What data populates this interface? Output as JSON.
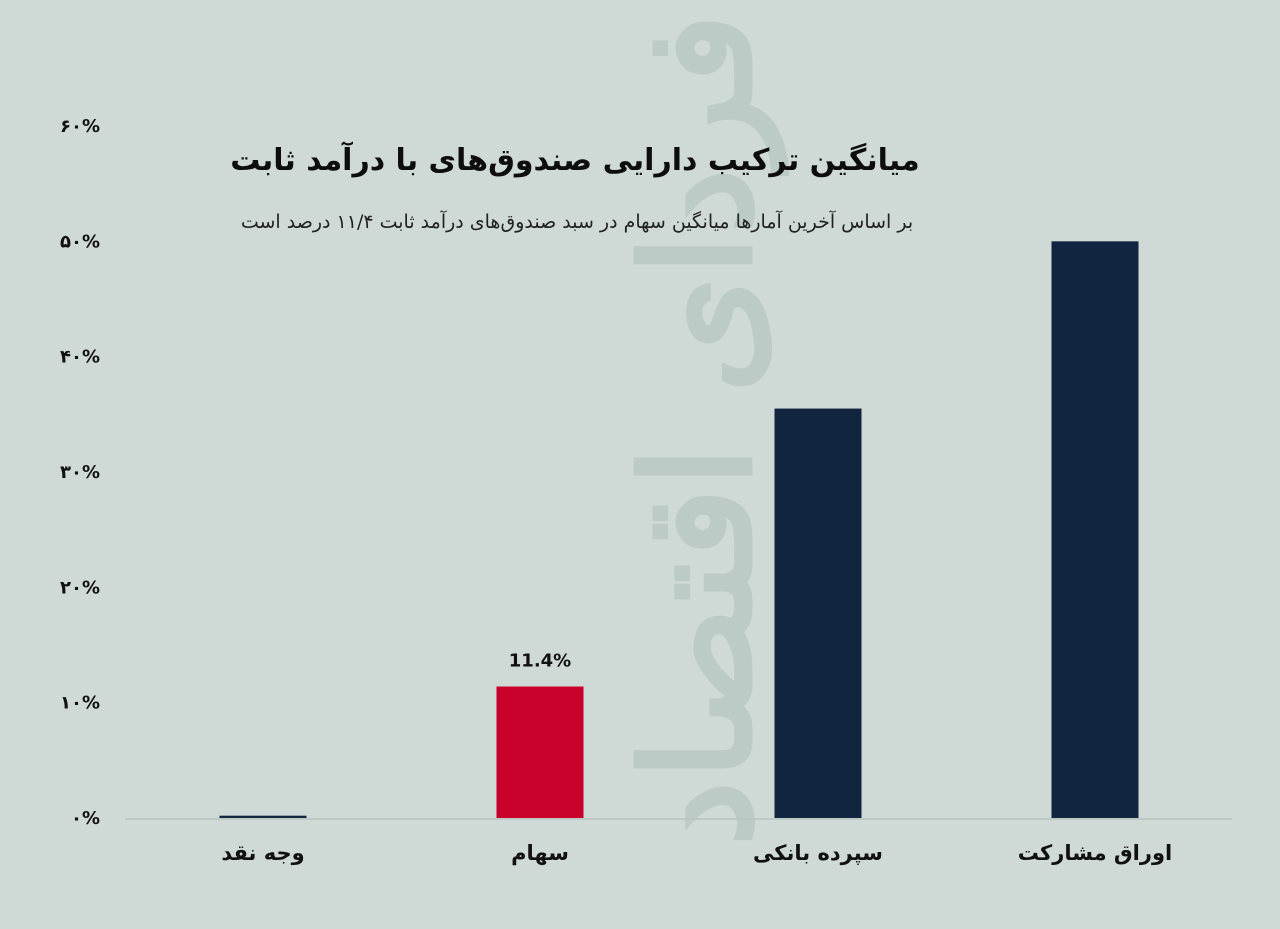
{
  "watermark_text": "فردای اقتصاد",
  "colors": {
    "background": "#cfd9d6",
    "bar_default": "#112440",
    "bar_highlight": "#c8002a",
    "baseline": "#b9c4c1"
  },
  "chart_data": {
    "type": "bar",
    "title": "میانگین ترکیب دارایی صندوق‌های با درآمد ثابت",
    "subtitle": "بر اساس آخرین آمارها میانگین سهام در سبد صندوق‌های درآمد ثابت ۱۱/۴ درصد است",
    "categories": [
      "وجه نقد",
      "سهام",
      "سپرده بانکی",
      "اوراق مشارکت"
    ],
    "values": [
      0.2,
      11.4,
      35.5,
      50
    ],
    "highlight_index": 1,
    "data_labels": [
      "",
      "11.4%",
      "",
      ""
    ],
    "ylim": [
      0,
      60
    ],
    "yticks": [
      0,
      10,
      20,
      30,
      40,
      50,
      60
    ],
    "ytick_labels": [
      "۰%",
      "۱۰%",
      "۲۰%",
      "۳۰%",
      "۴۰%",
      "۵۰%",
      "۶۰%"
    ],
    "xlabel": "",
    "ylabel": "",
    "grid": false,
    "legend": "none"
  }
}
